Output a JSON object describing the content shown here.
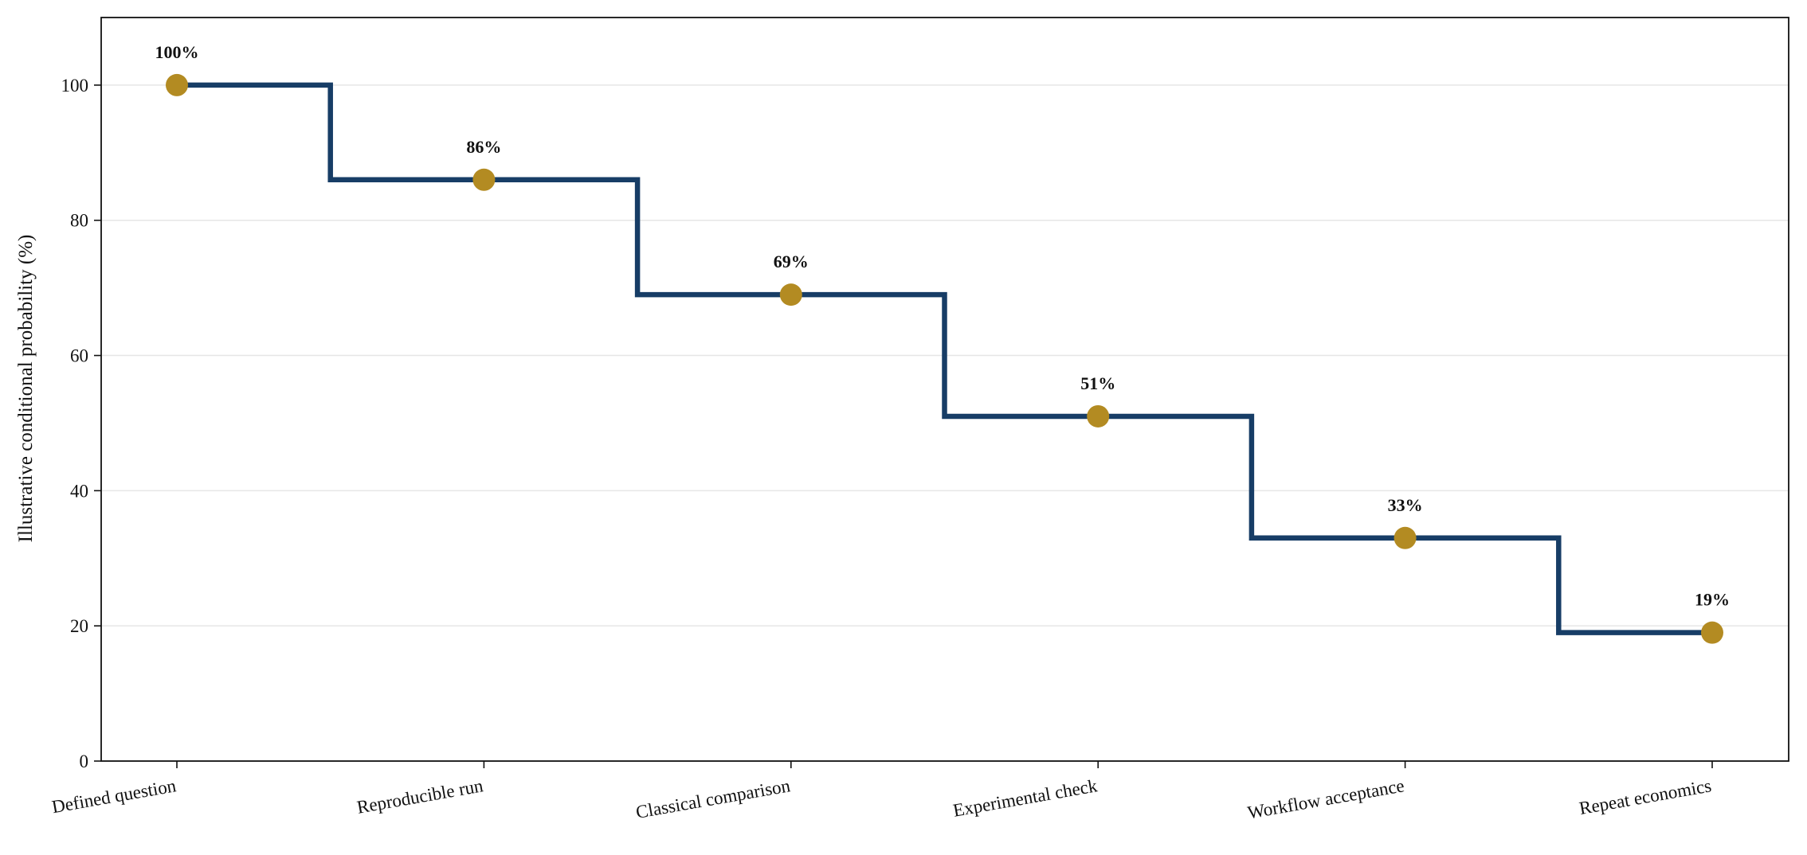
{
  "chart_data": {
    "type": "line",
    "step": "mid",
    "categories": [
      "Defined question",
      "Reproducible run",
      "Classical comparison",
      "Experimental check",
      "Workflow acceptance",
      "Repeat economics"
    ],
    "series": [
      {
        "values": [
          100,
          86,
          69,
          51,
          33,
          19
        ],
        "line_color": "#173d66",
        "marker_color": "#b38b22"
      }
    ],
    "data_labels": [
      "100%",
      "86%",
      "69%",
      "51%",
      "33%",
      "19%"
    ],
    "xlabel": "",
    "ylabel": "Illustrative conditional probability (%)",
    "ylim": [
      0,
      110
    ],
    "yticks": [
      0,
      20,
      40,
      60,
      80,
      100
    ],
    "grid": "horizontal",
    "legend": "none"
  }
}
